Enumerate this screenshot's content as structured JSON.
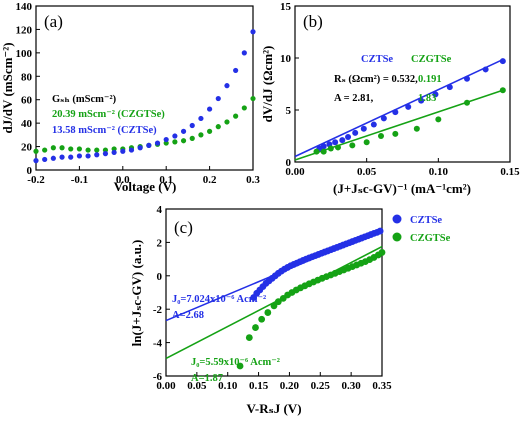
{
  "colors": {
    "blue": "#2430e6",
    "green": "#15a215",
    "black": "#000000"
  },
  "chart_data": [
    {
      "type": "scatter",
      "panel_label": "(a)",
      "xlabel": "Voltage (V)",
      "ylabel": "dJ/dV (mScm⁻²)",
      "xlim": [
        -0.2,
        0.3
      ],
      "ylim": [
        0,
        140
      ],
      "xticks": [
        -0.2,
        -0.1,
        0.0,
        0.1,
        0.2,
        0.3
      ],
      "xtick_labels": [
        "-0.2",
        "-0.1",
        "0.0",
        "0.1",
        "0.2",
        "0.3"
      ],
      "yticks": [
        0,
        20,
        40,
        60,
        80,
        100,
        120,
        140
      ],
      "ytick_labels": [
        "0",
        "20",
        "40",
        "60",
        "80",
        "100",
        "120",
        "140"
      ],
      "annotations": [
        "Gₛₕ (mScm⁻²)",
        "20.39 mScm⁻² (CZGTSe)",
        "13.58 mScm⁻² (CZTSe)"
      ],
      "series": [
        {
          "name": "CZGTSe",
          "color": "green",
          "x": [
            -0.2,
            -0.18,
            -0.16,
            -0.14,
            -0.12,
            -0.1,
            -0.08,
            -0.06,
            -0.04,
            -0.02,
            0.0,
            0.02,
            0.04,
            0.06,
            0.08,
            0.1,
            0.12,
            0.14,
            0.16,
            0.18,
            0.2,
            0.22,
            0.24,
            0.26,
            0.28,
            0.3
          ],
          "y": [
            16,
            17,
            19,
            19,
            18,
            18,
            17,
            17,
            17,
            18,
            18,
            19,
            20,
            21,
            22,
            23,
            24,
            25,
            27,
            30,
            33,
            37,
            41,
            46,
            53,
            61
          ]
        },
        {
          "name": "CZTSe",
          "color": "blue",
          "x": [
            -0.2,
            -0.18,
            -0.16,
            -0.14,
            -0.12,
            -0.1,
            -0.08,
            -0.06,
            -0.04,
            -0.02,
            0.0,
            0.02,
            0.04,
            0.06,
            0.08,
            0.1,
            0.12,
            0.14,
            0.16,
            0.18,
            0.2,
            0.22,
            0.24,
            0.26,
            0.28,
            0.3
          ],
          "y": [
            8,
            9,
            10,
            11,
            11,
            12,
            12,
            13,
            14,
            15,
            16,
            17,
            19,
            21,
            23,
            26,
            29,
            33,
            38,
            44,
            52,
            61,
            72,
            85,
            100,
            118
          ]
        }
      ]
    },
    {
      "type": "scatter",
      "panel_label": "(b)",
      "xlabel": "(J+Jₛc-GV)⁻¹ (mA⁻¹cm²)",
      "ylabel": "dV/dJ (Ωcm²)",
      "xlim": [
        0.0,
        0.15
      ],
      "ylim": [
        0,
        15
      ],
      "xticks": [
        0.0,
        0.05,
        0.1,
        0.15
      ],
      "xtick_labels": [
        "0.00",
        "0.05",
        "0.10",
        "0.15"
      ],
      "yticks": [
        0,
        5,
        10,
        15
      ],
      "ytick_labels": [
        "0",
        "5",
        "10",
        "15"
      ],
      "legend_header": [
        "CZTSe",
        "CZGTSe"
      ],
      "annotations": [
        "Rₛ (Ωcm²) = 0.532,",
        "0.191",
        "A = 2.81,",
        "1.83"
      ],
      "series": [
        {
          "name": "CZTSe",
          "color": "blue",
          "x": [
            0.017,
            0.02,
            0.024,
            0.028,
            0.033,
            0.037,
            0.042,
            0.048,
            0.055,
            0.062,
            0.07,
            0.079,
            0.088,
            0.098,
            0.108,
            0.12,
            0.133,
            0.145
          ],
          "y": [
            1.3,
            1.5,
            1.7,
            1.9,
            2.1,
            2.4,
            2.8,
            3.2,
            3.6,
            4.2,
            4.8,
            5.3,
            5.9,
            6.5,
            7.2,
            8.0,
            8.9,
            9.7
          ],
          "fit": [
            [
              0.0,
              0.532
            ],
            [
              0.145,
              9.85
            ]
          ]
        },
        {
          "name": "CZGTSe",
          "color": "green",
          "x": [
            0.015,
            0.02,
            0.025,
            0.03,
            0.04,
            0.05,
            0.06,
            0.07,
            0.085,
            0.1,
            0.12,
            0.145
          ],
          "y": [
            1.0,
            1.0,
            1.3,
            1.4,
            1.6,
            1.9,
            2.5,
            2.7,
            3.2,
            4.1,
            5.7,
            6.9
          ],
          "fit": [
            [
              0.0,
              0.191
            ],
            [
              0.145,
              6.9
            ]
          ]
        }
      ]
    },
    {
      "type": "scatter",
      "panel_label": "(c)",
      "xlabel": "V-RₛJ (V)",
      "ylabel": "ln(J+Jₛc-GV) (a.u.)",
      "xlim": [
        0.0,
        0.35
      ],
      "ylim": [
        -6,
        4
      ],
      "xticks": [
        0.0,
        0.05,
        0.1,
        0.15,
        0.2,
        0.25,
        0.3,
        0.35
      ],
      "xtick_labels": [
        "0.00",
        "0.05",
        "0.10",
        "0.15",
        "0.20",
        "0.25",
        "0.30",
        "0.35"
      ],
      "yticks": [
        -6,
        -4,
        -2,
        0,
        2,
        4
      ],
      "ytick_labels": [
        "-6",
        "-4",
        "-2",
        "0",
        "2",
        "4"
      ],
      "legend": [
        "CZTSe",
        "CZGTSe"
      ],
      "annotations": [
        "J₀=7.024x10⁻⁶ Acm⁻²",
        "A=2.68",
        "J₀=5.59x10⁻⁶ Acm⁻²",
        "A=1.87"
      ],
      "series": [
        {
          "name": "CZTSe",
          "color": "blue",
          "x": [
            0.142,
            0.147,
            0.152,
            0.157,
            0.162,
            0.167,
            0.172,
            0.177,
            0.182,
            0.187,
            0.192,
            0.197,
            0.202,
            0.207,
            0.212,
            0.217,
            0.222,
            0.227,
            0.232,
            0.237,
            0.242,
            0.247,
            0.252,
            0.257,
            0.262,
            0.267,
            0.272,
            0.277,
            0.282,
            0.287,
            0.292,
            0.297,
            0.302,
            0.307,
            0.312,
            0.317,
            0.322,
            0.327,
            0.332,
            0.337,
            0.342,
            0.347
          ],
          "y": [
            -1.3,
            -1.05,
            -0.85,
            -0.65,
            -0.45,
            -0.3,
            -0.15,
            0.0,
            0.15,
            0.28,
            0.4,
            0.5,
            0.6,
            0.68,
            0.76,
            0.84,
            0.92,
            1.0,
            1.07,
            1.14,
            1.21,
            1.28,
            1.35,
            1.42,
            1.49,
            1.56,
            1.63,
            1.7,
            1.77,
            1.84,
            1.91,
            1.98,
            2.05,
            2.12,
            2.19,
            2.26,
            2.33,
            2.4,
            2.47,
            2.54,
            2.6,
            2.68
          ],
          "fit": [
            [
              0.0,
              -2.68
            ],
            [
              0.35,
              2.75
            ]
          ]
        },
        {
          "name": "CZGTSe",
          "color": "green",
          "x": [
            0.12,
            0.135,
            0.145,
            0.155,
            0.165,
            0.175,
            0.182,
            0.19,
            0.197,
            0.204,
            0.211,
            0.218,
            0.225,
            0.232,
            0.239,
            0.246,
            0.253,
            0.26,
            0.267,
            0.274,
            0.281,
            0.288,
            0.295,
            0.302,
            0.309,
            0.316,
            0.323,
            0.33,
            0.337,
            0.344,
            0.35
          ],
          "y": [
            -5.4,
            -3.7,
            -3.1,
            -2.6,
            -2.2,
            -1.8,
            -1.55,
            -1.35,
            -1.15,
            -1.0,
            -0.85,
            -0.72,
            -0.6,
            -0.48,
            -0.37,
            -0.26,
            -0.15,
            -0.05,
            0.05,
            0.15,
            0.25,
            0.35,
            0.45,
            0.55,
            0.65,
            0.75,
            0.85,
            0.97,
            1.1,
            1.25,
            1.4
          ],
          "fit": [
            [
              0.0,
              -4.95
            ],
            [
              0.35,
              1.75
            ]
          ]
        }
      ]
    }
  ]
}
